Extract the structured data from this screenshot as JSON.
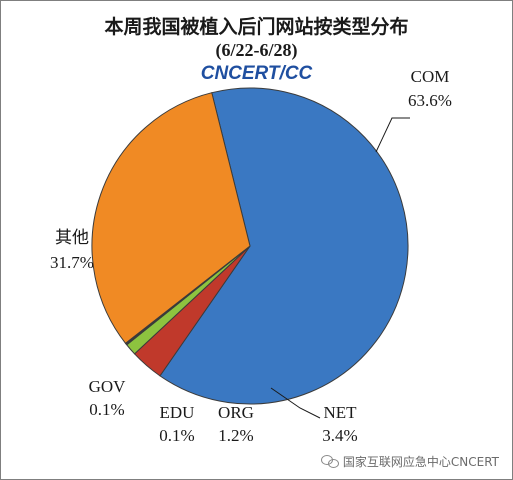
{
  "chart_data": {
    "type": "pie",
    "title": "本周我国被植入后门网站按类型分布",
    "subtitle": "(6/22-6/28)",
    "slices": [
      {
        "name": "COM",
        "value": 63.6,
        "label": "63.6%",
        "color": "#3a78c2"
      },
      {
        "name": "NET",
        "value": 3.4,
        "label": "3.4%",
        "color": "#c0392b"
      },
      {
        "name": "ORG",
        "value": 1.2,
        "label": "1.2%",
        "color": "#8dc33f"
      },
      {
        "name": "EDU",
        "value": 0.1,
        "label": "0.1%",
        "color": "#6f4aa0"
      },
      {
        "name": "GOV",
        "value": 0.1,
        "label": "0.1%",
        "color": "#3fa9c4"
      },
      {
        "name": "其他",
        "value": 31.7,
        "label": "31.7%",
        "color": "#f08a24"
      }
    ],
    "legend": "none"
  },
  "logo_text": "CNCERT/CC",
  "watermark_text": "国家互联网应急中心CNCERT",
  "watermark_icon": "wechat-icon"
}
